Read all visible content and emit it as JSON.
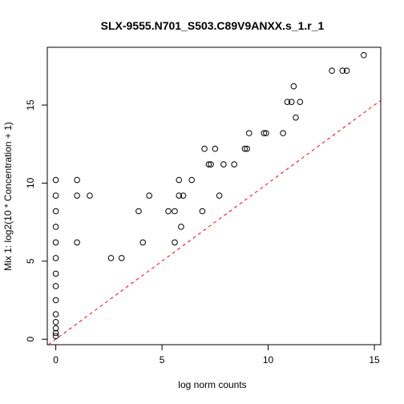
{
  "chart_data": {
    "type": "scatter",
    "title": "SLX-9555.N701_S503.C89V9ANXX.s_1.r_1",
    "xlabel": "log norm counts",
    "ylabel": "Mix 1: log2(10 * Concentration + 1)",
    "xlim": [
      -0.4,
      15.3
    ],
    "ylim": [
      -0.35,
      18.7
    ],
    "xticks": [
      0,
      5,
      10,
      15
    ],
    "yticks": [
      0,
      5,
      10,
      15
    ],
    "ref_line": {
      "slope": 1,
      "intercept": 0,
      "color": "#ff0000",
      "style": "dashed"
    },
    "points": [
      [
        0,
        10.2
      ],
      [
        0,
        9.2
      ],
      [
        0,
        8.2
      ],
      [
        0,
        7.2
      ],
      [
        0,
        6.2
      ],
      [
        0,
        5.2
      ],
      [
        0,
        4.2
      ],
      [
        0,
        3.4
      ],
      [
        0,
        2.5
      ],
      [
        0,
        1.6
      ],
      [
        0,
        1.1
      ],
      [
        0,
        0.7
      ],
      [
        0,
        0.4
      ],
      [
        0,
        0.2
      ],
      [
        1.0,
        10.2
      ],
      [
        1.0,
        9.2
      ],
      [
        1.0,
        6.2
      ],
      [
        1.6,
        9.2
      ],
      [
        2.6,
        5.2
      ],
      [
        3.1,
        5.2
      ],
      [
        3.9,
        8.2
      ],
      [
        4.1,
        6.2
      ],
      [
        4.4,
        9.2
      ],
      [
        5.3,
        8.2
      ],
      [
        5.6,
        8.2
      ],
      [
        5.6,
        6.2
      ],
      [
        5.8,
        10.2
      ],
      [
        5.8,
        9.2
      ],
      [
        5.9,
        7.2
      ],
      [
        6.0,
        9.2
      ],
      [
        6.4,
        10.2
      ],
      [
        6.9,
        8.2
      ],
      [
        7.0,
        12.2
      ],
      [
        7.2,
        11.2
      ],
      [
        7.3,
        11.2
      ],
      [
        7.5,
        12.2
      ],
      [
        7.7,
        9.2
      ],
      [
        7.9,
        11.2
      ],
      [
        8.4,
        11.2
      ],
      [
        8.9,
        12.2
      ],
      [
        9.0,
        12.2
      ],
      [
        9.1,
        13.2
      ],
      [
        9.8,
        13.2
      ],
      [
        9.9,
        13.2
      ],
      [
        10.7,
        13.2
      ],
      [
        10.9,
        15.2
      ],
      [
        11.1,
        15.2
      ],
      [
        11.2,
        16.2
      ],
      [
        11.3,
        14.2
      ],
      [
        11.5,
        15.2
      ],
      [
        13.0,
        17.2
      ],
      [
        13.5,
        17.2
      ],
      [
        13.7,
        17.2
      ],
      [
        14.5,
        18.2
      ]
    ]
  }
}
